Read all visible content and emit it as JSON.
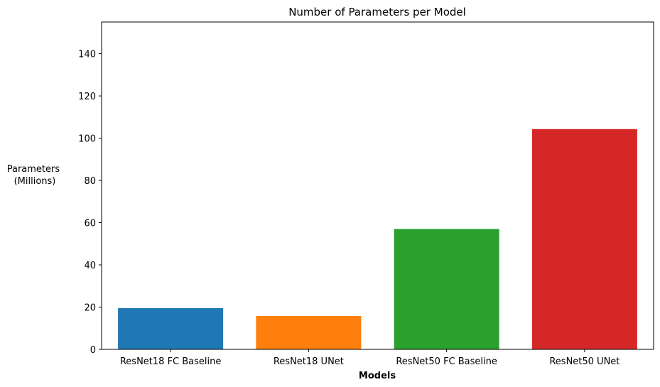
{
  "chart_data": {
    "type": "bar",
    "title": "Number of Parameters per Model",
    "xlabel": "Models",
    "ylabel": [
      "Parameters",
      "(Millions)"
    ],
    "categories": [
      "ResNet18 FC Baseline",
      "ResNet18 UNet",
      "ResNet50 FC Baseline",
      "ResNet50 UNet"
    ],
    "values": [
      19.5,
      15.8,
      57.0,
      104.3
    ],
    "colors": [
      "#1f77b4",
      "#ff7f0e",
      "#2ca02c",
      "#d62728"
    ],
    "ylim": [
      0,
      155
    ],
    "yticks": [
      0,
      20,
      40,
      60,
      80,
      100,
      120,
      140
    ],
    "grid": false,
    "legend": "none"
  }
}
